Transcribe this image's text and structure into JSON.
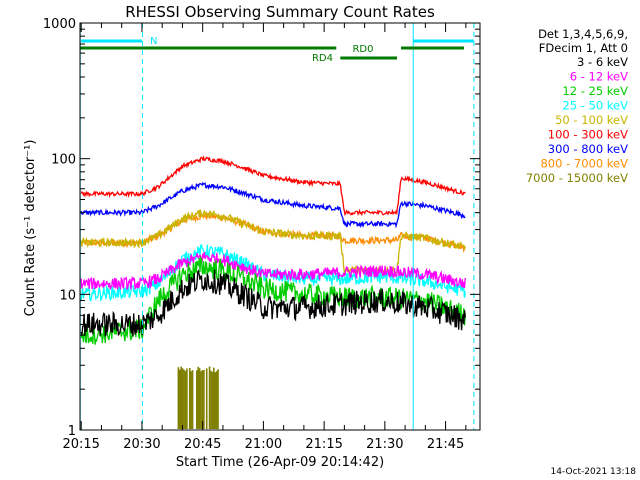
{
  "chart_data": {
    "type": "line",
    "title": "RHESSI Observing Summary Count Rates",
    "xlabel": "Start Time (26-Apr-09 20:14:42)",
    "ylabel": "Count Rate (s⁻¹ detector⁻¹)",
    "y_scale": "log",
    "ylim": [
      1,
      1000
    ],
    "xlim": [
      "20:15",
      "21:53"
    ],
    "x_ticks": [
      "20:15",
      "20:30",
      "20:45",
      "21:00",
      "21:15",
      "21:30",
      "21:45"
    ],
    "y_ticks": [
      "1",
      "10",
      "100",
      "1000"
    ],
    "legend_header": [
      "Det 1,3,4,5,6,9,",
      "FDecim 1, Att 0"
    ],
    "legend_placement": "right",
    "series": [
      {
        "name": "3 - 6 keV",
        "color": "#000000",
        "x": [
          "20:15",
          "20:30",
          "20:34",
          "20:40",
          "20:45",
          "20:50",
          "20:55",
          "21:00",
          "21:10",
          "21:20",
          "21:30",
          "21:40",
          "21:50"
        ],
        "values": [
          6,
          6,
          7,
          11,
          13,
          12,
          10,
          8,
          8,
          8.5,
          9,
          8,
          6.5
        ]
      },
      {
        "name": "6 - 12 keV",
        "color": "#ff00ff",
        "x": [
          "20:15",
          "20:30",
          "20:34",
          "20:40",
          "20:45",
          "20:50",
          "20:55",
          "21:00",
          "21:10",
          "21:20",
          "21:30",
          "21:40",
          "21:50"
        ],
        "values": [
          12,
          12,
          13,
          17,
          19,
          18,
          16,
          14,
          14,
          14.5,
          15,
          14,
          12
        ]
      },
      {
        "name": "12 - 25 keV",
        "color": "#00cc00",
        "x": [
          "20:15",
          "20:30",
          "20:34",
          "20:40",
          "20:45",
          "20:50",
          "20:55",
          "21:00",
          "21:10",
          "21:20",
          "21:30",
          "21:40",
          "21:50"
        ],
        "values": [
          5,
          5.5,
          9,
          14,
          16,
          15,
          13,
          11,
          10,
          9.5,
          9.5,
          9,
          7
        ]
      },
      {
        "name": "25 - 50 keV",
        "color": "#00ffff",
        "x": [
          "20:15",
          "20:30",
          "20:34",
          "20:40",
          "20:45",
          "20:50",
          "20:55",
          "21:00",
          "21:10",
          "21:20",
          "21:30",
          "21:40",
          "21:50"
        ],
        "values": [
          10,
          10.5,
          12,
          18,
          21,
          20,
          17,
          14,
          13,
          13,
          13.5,
          12.5,
          10.5
        ]
      },
      {
        "name": "50 - 100 keV",
        "color": "#c8b400",
        "x": [
          "20:15",
          "20:30",
          "20:34",
          "20:40",
          "20:45",
          "20:50",
          "20:55",
          "21:00",
          "21:10",
          "21:19",
          "21:20",
          "21:33",
          "21:34",
          "21:40",
          "21:50"
        ],
        "values": [
          24,
          24,
          27,
          36,
          40,
          38,
          33,
          29,
          27,
          27,
          15,
          15,
          27,
          26,
          22
        ]
      },
      {
        "name": "100 - 300 keV",
        "color": "#ff0000",
        "x": [
          "20:15",
          "20:30",
          "20:34",
          "20:40",
          "20:45",
          "20:50",
          "20:55",
          "21:00",
          "21:10",
          "21:19",
          "21:20",
          "21:33",
          "21:34",
          "21:40",
          "21:50"
        ],
        "values": [
          55,
          55,
          62,
          88,
          100,
          96,
          86,
          75,
          67,
          65,
          40,
          40,
          72,
          67,
          55
        ]
      },
      {
        "name": "300 - 800 keV",
        "color": "#0000ff",
        "x": [
          "20:15",
          "20:30",
          "20:34",
          "20:40",
          "20:45",
          "20:50",
          "20:55",
          "21:00",
          "21:10",
          "21:19",
          "21:20",
          "21:33",
          "21:34",
          "21:40",
          "21:50"
        ],
        "values": [
          40,
          40,
          45,
          58,
          64,
          62,
          56,
          50,
          45,
          43,
          33,
          33,
          47,
          45,
          38
        ]
      },
      {
        "name": "800 - 7000 keV",
        "color": "#ff8c00",
        "x": [
          "20:15",
          "20:30",
          "20:34",
          "20:40",
          "20:45",
          "20:50",
          "20:55",
          "21:00",
          "21:10",
          "21:19",
          "21:20",
          "21:33",
          "21:34",
          "21:40",
          "21:50"
        ],
        "values": [
          24,
          24,
          27,
          35,
          38,
          37,
          33,
          29,
          27,
          27,
          25,
          25,
          27,
          26,
          22
        ]
      },
      {
        "name": "7000 - 15000 keV",
        "color": "#808000",
        "x": [
          "20:39",
          "20:40",
          "20:42",
          "20:44",
          "20:46",
          "20:48",
          "20:49"
        ],
        "values": [
          2.8,
          2.8,
          2.8,
          2.8,
          2.8,
          2.8,
          2.8
        ]
      }
    ],
    "annotations": [
      "N",
      "RD0",
      "RD4"
    ],
    "footer": "14-Oct-2021 13:18"
  }
}
